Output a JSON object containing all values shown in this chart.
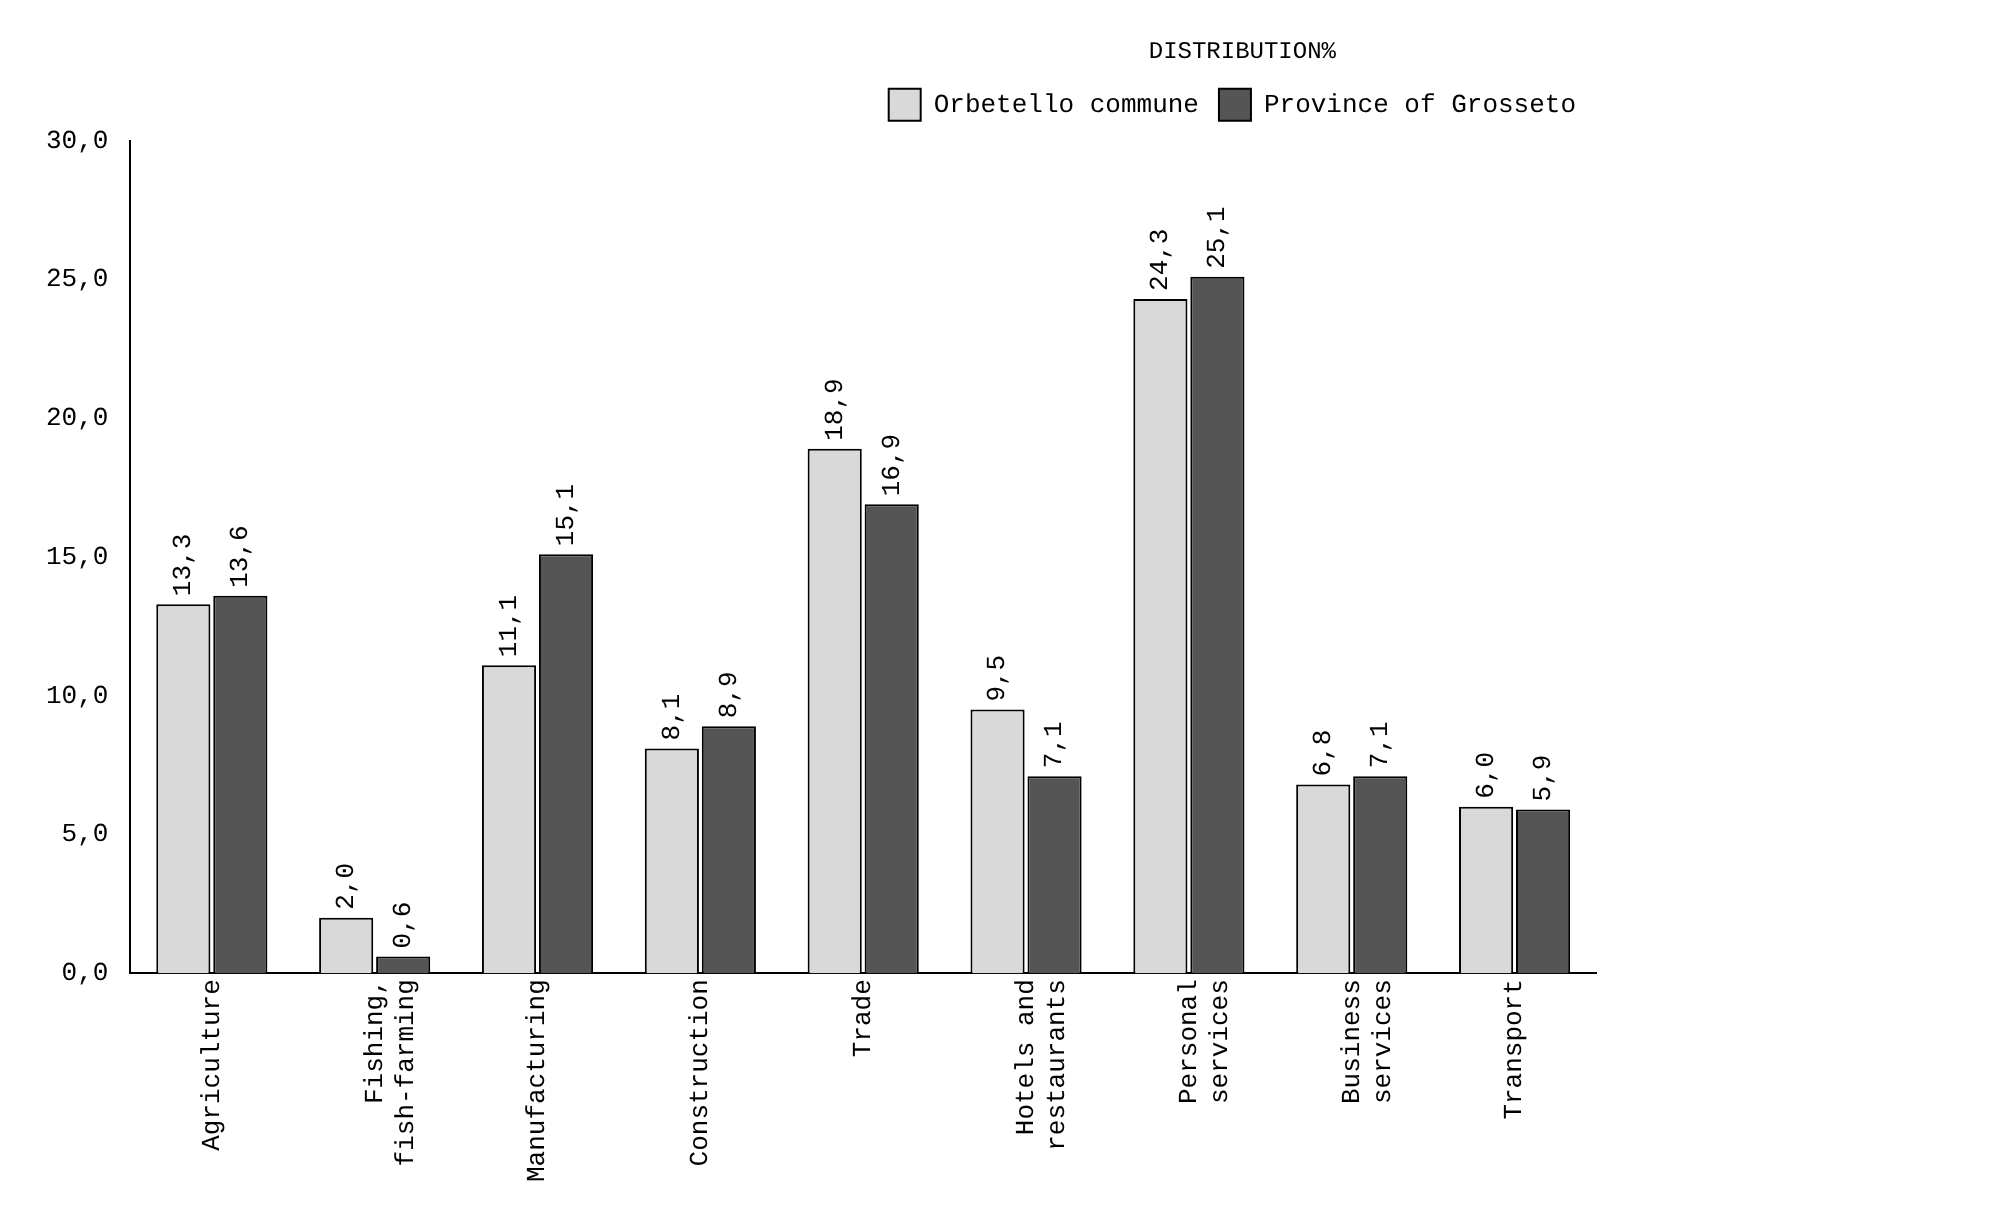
{
  "chart_data": {
    "type": "bar",
    "legend_title": "DISTRIBUTION%",
    "categories": [
      "Agriculture",
      "Fishing,\nfish-farming",
      "Manufacturing",
      "Construction",
      "Trade",
      "Hotels and\nrestaurants",
      "Personal\nservices",
      "Business\nservices",
      "Transport"
    ],
    "series": [
      {
        "name": "Orbetello commune",
        "color": "#d9d9d9",
        "values": [
          13.3,
          2.0,
          11.1,
          8.1,
          18.9,
          9.5,
          24.3,
          6.8,
          6.0
        ],
        "value_labels": [
          "13,3",
          "2,0",
          "11,1",
          "8,1",
          "18,9",
          "9,5",
          "24,3",
          "6,8",
          "6,0"
        ]
      },
      {
        "name": "Province of Grosseto",
        "color": "#555555",
        "values": [
          13.6,
          0.6,
          15.1,
          8.9,
          16.9,
          7.1,
          25.1,
          7.1,
          5.9
        ],
        "value_labels": [
          "13,6",
          "0,6",
          "15,1",
          "8,9",
          "16,9",
          "7,1",
          "25,1",
          "7,1",
          "5,9"
        ]
      }
    ],
    "ylim": [
      0,
      30
    ],
    "yticks": [
      {
        "value": 0,
        "label": "0,0"
      },
      {
        "value": 5,
        "label": "5,0"
      },
      {
        "value": 10,
        "label": "10,0"
      },
      {
        "value": 15,
        "label": "15,0"
      },
      {
        "value": 20,
        "label": "20,0"
      },
      {
        "value": 25,
        "label": "25,0"
      },
      {
        "value": 30,
        "label": "30,0"
      }
    ],
    "grid": false,
    "legend": "top right"
  }
}
